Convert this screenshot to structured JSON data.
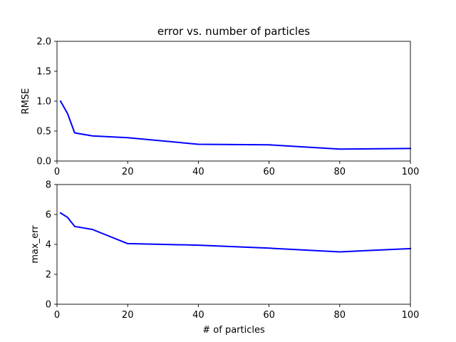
{
  "chart_data": [
    {
      "type": "line",
      "title": "error vs. number of particles",
      "xlabel": "",
      "ylabel": "RMSE",
      "xlim": [
        0,
        100
      ],
      "ylim": [
        0,
        2.0
      ],
      "xticks": [
        "0",
        "20",
        "40",
        "60",
        "80",
        "100"
      ],
      "yticks": [
        "0.0",
        "0.5",
        "1.0",
        "1.5",
        "2.0"
      ],
      "grid": false,
      "series": [
        {
          "color": "#0000ff",
          "x": [
            1,
            3,
            5,
            10,
            20,
            40,
            60,
            80,
            100
          ],
          "y": [
            1.0,
            0.79,
            0.47,
            0.42,
            0.39,
            0.28,
            0.27,
            0.2,
            0.21
          ]
        }
      ]
    },
    {
      "type": "line",
      "title": "",
      "xlabel": "# of particles",
      "ylabel": "max_err",
      "xlim": [
        0,
        100
      ],
      "ylim": [
        0,
        8
      ],
      "xticks": [
        "0",
        "20",
        "40",
        "60",
        "80",
        "100"
      ],
      "yticks": [
        "0",
        "2",
        "4",
        "6",
        "8"
      ],
      "grid": false,
      "series": [
        {
          "color": "#0000ff",
          "x": [
            1,
            3,
            5,
            10,
            20,
            40,
            60,
            80,
            100
          ],
          "y": [
            6.1,
            5.8,
            5.2,
            5.0,
            4.05,
            3.95,
            3.75,
            3.5,
            3.72
          ]
        }
      ]
    }
  ]
}
